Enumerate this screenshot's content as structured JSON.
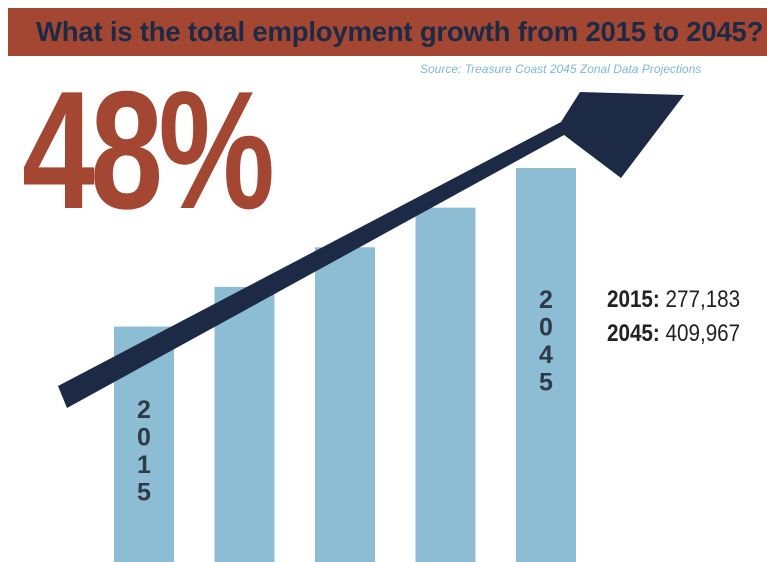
{
  "header": {
    "title": "What is the total employment growth from 2015 to 2045?"
  },
  "source": "Source: Treasure Coast 2045 Zonal Data Projections",
  "headline": {
    "percent": "48%"
  },
  "stats": [
    {
      "year": "2015:",
      "value": "277,183"
    },
    {
      "year": "2045:",
      "value": "409,967"
    }
  ],
  "chart_data": {
    "type": "bar",
    "categories": [
      "2015",
      "",
      "",
      "",
      "2045"
    ],
    "bar_labels": [
      "2015",
      "",
      "",
      "",
      "2045"
    ],
    "values": [
      277183,
      310380,
      343575,
      376771,
      409967
    ],
    "ylim": [
      80000,
      409967
    ],
    "grid": false,
    "legend": "none"
  },
  "colors": {
    "banner": "#a34732",
    "title_text": "#1c2a46",
    "percent": "#a34732",
    "bars": "#8dbdd5",
    "bar_text": "#2e3a46",
    "arrow": "#1c2a46",
    "source": "#7fb8d2",
    "stats_text": "#222222"
  }
}
